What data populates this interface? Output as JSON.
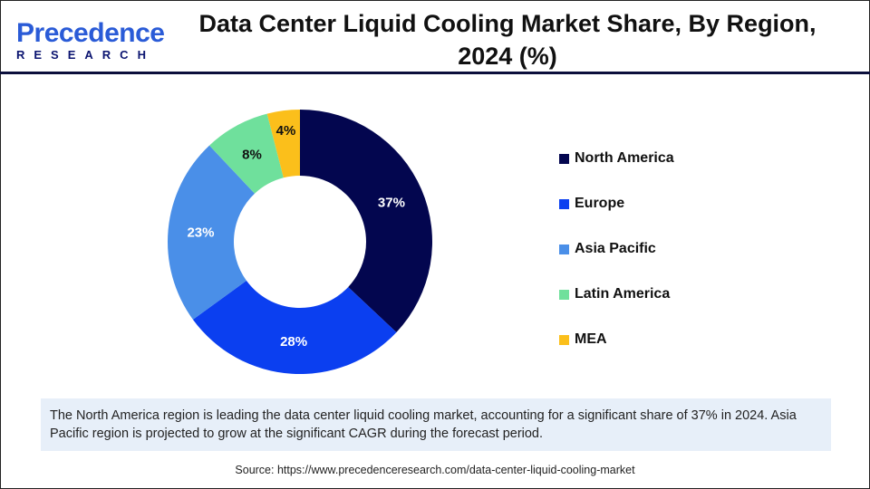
{
  "logo": {
    "line1_a": "P",
    "line1_b": "recedence",
    "line2": "RESEARCH"
  },
  "title": "Data Center Liquid Cooling Market Share, By Region, 2024 (%)",
  "chart_data": {
    "type": "pie",
    "donut": true,
    "title": "Data Center Liquid Cooling Market Share, By Region, 2024 (%)",
    "categories": [
      "North America",
      "Europe",
      "Asia Pacific",
      "Latin America",
      "MEA"
    ],
    "values": [
      37,
      28,
      23,
      8,
      4
    ],
    "labels": [
      "37%",
      "28%",
      "23%",
      "8%",
      "4%"
    ],
    "colors": [
      "#03064f",
      "#0b3ff0",
      "#4a8fe8",
      "#6fe09c",
      "#fbbf1b"
    ],
    "label_colors": [
      "#ffffff",
      "#ffffff",
      "#ffffff",
      "#111111",
      "#111111"
    ],
    "legend_position": "right"
  },
  "note": "The North America region is leading the data center liquid cooling market, accounting for a significant share of 37% in 2024. Asia Pacific region is projected to grow at the significant CAGR during the forecast period.",
  "source": "Source: https://www.precedenceresearch.com/data-center-liquid-cooling-market"
}
